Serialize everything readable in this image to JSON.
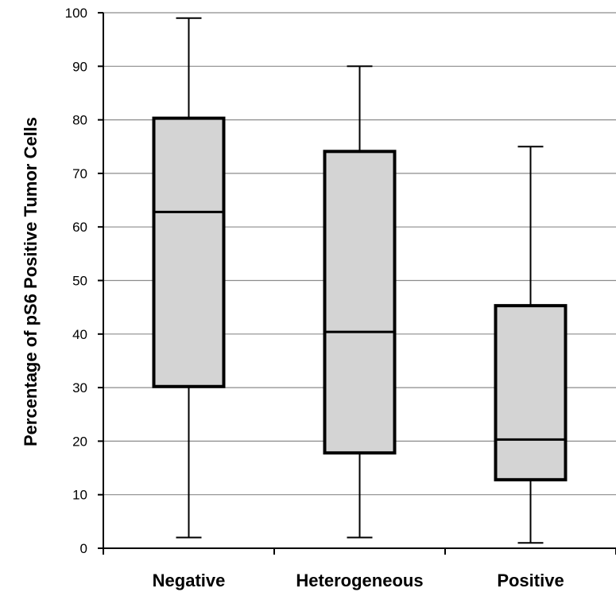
{
  "chart_data": {
    "type": "box",
    "title": "",
    "xlabel": "",
    "ylabel": "Percentage of pS6 Positive Tumor Cells",
    "ylim": [
      0,
      100
    ],
    "yticks": [
      "0",
      "10",
      "20",
      "30",
      "40",
      "50",
      "60",
      "70",
      "80",
      "90",
      "100"
    ],
    "grid": true,
    "categories": [
      "Negative",
      "Heterogeneous",
      "Positive"
    ],
    "boxes": [
      {
        "category": "Negative",
        "min": 2,
        "q1": 30.2,
        "median": 62.8,
        "q3": 80.3,
        "max": 99
      },
      {
        "category": "Heterogeneous",
        "min": 2,
        "q1": 17.8,
        "median": 40.4,
        "q3": 74.1,
        "max": 90
      },
      {
        "category": "Positive",
        "min": 1,
        "q1": 12.8,
        "median": 20.3,
        "q3": 45.3,
        "max": 75
      }
    ],
    "colors": {
      "box_fill": "#d4d4d4",
      "stroke": "#000000",
      "grid": "#8c8c8c"
    }
  }
}
